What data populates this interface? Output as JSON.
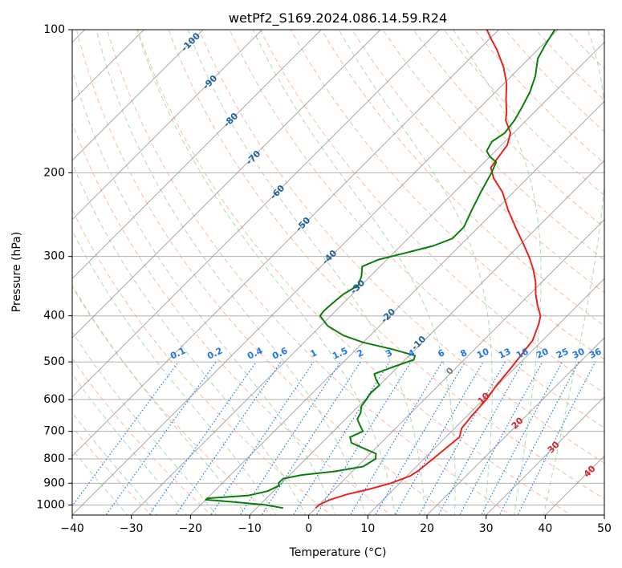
{
  "chart_data": {
    "type": "line",
    "title": "wetPf2_S169.2024.086.14.59.R24",
    "xlabel": "Temperature (°C)",
    "ylabel": "Pressure (hPa)",
    "xlim": [
      -40,
      50
    ],
    "ylim": [
      1050,
      100
    ],
    "y_scale": "log",
    "grid": true,
    "x_ticks": [
      "−40",
      "−30",
      "−20",
      "−10",
      "0",
      "10",
      "20",
      "30",
      "40",
      "50"
    ],
    "y_ticks": [
      {
        "p": 100,
        "label": "100"
      },
      {
        "p": 200,
        "label": "200"
      },
      {
        "p": 300,
        "label": "300"
      },
      {
        "p": 400,
        "label": "400"
      },
      {
        "p": 500,
        "label": "500"
      },
      {
        "p": 600,
        "label": "600"
      },
      {
        "p": 700,
        "label": "700"
      },
      {
        "p": 800,
        "label": "800"
      },
      {
        "p": 900,
        "label": "900"
      },
      {
        "p": 1000,
        "label": "1000"
      }
    ],
    "series": [
      {
        "color": "#e8231d",
        "points": [
          [
            1015,
            0.0
          ],
          [
            1000,
            0.0
          ],
          [
            975,
            1.0
          ],
          [
            950,
            3.0
          ],
          [
            925,
            6.0
          ],
          [
            900,
            8.5
          ],
          [
            870,
            10.5
          ],
          [
            850,
            11.0
          ],
          [
            800,
            11.5
          ],
          [
            750,
            12.0
          ],
          [
            720,
            12.3
          ],
          [
            690,
            11.2
          ],
          [
            650,
            10.8
          ],
          [
            600,
            10.5
          ],
          [
            560,
            9.8
          ],
          [
            520,
            9.4
          ],
          [
            480,
            8.8
          ],
          [
            450,
            8.3
          ],
          [
            430,
            7.3
          ],
          [
            415,
            6.5
          ],
          [
            400,
            5.5
          ],
          [
            380,
            3.2
          ],
          [
            360,
            1.0
          ],
          [
            340,
            -1.0
          ],
          [
            320,
            -3.5
          ],
          [
            300,
            -6.5
          ],
          [
            280,
            -10.0
          ],
          [
            260,
            -13.8
          ],
          [
            240,
            -17.8
          ],
          [
            220,
            -21.8
          ],
          [
            205,
            -25.8
          ],
          [
            195,
            -28.0
          ],
          [
            185,
            -28.5
          ],
          [
            175,
            -29.0
          ],
          [
            165,
            -30.5
          ],
          [
            155,
            -33.5
          ],
          [
            150,
            -34.5
          ],
          [
            140,
            -37.0
          ],
          [
            130,
            -39.5
          ],
          [
            120,
            -42.8
          ],
          [
            110,
            -47.0
          ],
          [
            105,
            -49.5
          ],
          [
            100,
            -52.0
          ]
        ]
      },
      {
        "color": "#0b7d0b",
        "points": [
          [
            1015,
            -5.5
          ],
          [
            1000,
            -9.0
          ],
          [
            985,
            -15.0
          ],
          [
            975,
            -20.0
          ],
          [
            968,
            -20.0
          ],
          [
            955,
            -13.5
          ],
          [
            935,
            -11.0
          ],
          [
            910,
            -10.0
          ],
          [
            900,
            -10.5
          ],
          [
            880,
            -10.5
          ],
          [
            865,
            -8.0
          ],
          [
            850,
            -3.0
          ],
          [
            830,
            1.0
          ],
          [
            800,
            1.8
          ],
          [
            780,
            1.0
          ],
          [
            760,
            -2.0
          ],
          [
            740,
            -5.0
          ],
          [
            720,
            -6.2
          ],
          [
            700,
            -5.0
          ],
          [
            680,
            -6.5
          ],
          [
            660,
            -8.0
          ],
          [
            640,
            -8.5
          ],
          [
            620,
            -9.5
          ],
          [
            600,
            -9.8
          ],
          [
            580,
            -10.2
          ],
          [
            560,
            -10.0
          ],
          [
            545,
            -11.5
          ],
          [
            530,
            -12.8
          ],
          [
            510,
            -10.5
          ],
          [
            495,
            -8.5
          ],
          [
            485,
            -9.0
          ],
          [
            470,
            -14.0
          ],
          [
            455,
            -20.0
          ],
          [
            440,
            -24.5
          ],
          [
            420,
            -28.8
          ],
          [
            400,
            -31.8
          ],
          [
            390,
            -32.0
          ],
          [
            375,
            -31.8
          ],
          [
            360,
            -31.5
          ],
          [
            345,
            -30.5
          ],
          [
            330,
            -31.5
          ],
          [
            315,
            -33.0
          ],
          [
            305,
            -31.5
          ],
          [
            295,
            -28.0
          ],
          [
            285,
            -24.5
          ],
          [
            275,
            -22.5
          ],
          [
            260,
            -22.5
          ],
          [
            240,
            -24.0
          ],
          [
            220,
            -25.5
          ],
          [
            200,
            -27.0
          ],
          [
            190,
            -28.0
          ],
          [
            185,
            -30.0
          ],
          [
            180,
            -31.5
          ],
          [
            172,
            -32.2
          ],
          [
            165,
            -31.5
          ],
          [
            155,
            -32.0
          ],
          [
            145,
            -33.0
          ],
          [
            135,
            -34.2
          ],
          [
            125,
            -36.0
          ],
          [
            115,
            -38.5
          ],
          [
            108,
            -39.5
          ],
          [
            100,
            -40.5
          ]
        ]
      }
    ],
    "isotherm_labels": [
      "-100",
      "-90",
      "-80",
      "-70",
      "-60",
      "-50",
      "-40",
      "-30",
      "-20",
      "-10",
      "0"
    ],
    "dry_adiabat_labels": [
      "10",
      "20",
      "30",
      "40"
    ],
    "mixing_ratio_labels": [
      "0.1",
      "0.2",
      "0.4",
      "0.6",
      "1",
      "1.5",
      "2",
      "3",
      "4",
      "6",
      "8",
      "10",
      "13",
      "16",
      "20",
      "25",
      "30",
      "36"
    ],
    "colors": {
      "isotherm": "#8c8c8c",
      "isotherm_label": "#1f5f9e",
      "dry_adiabat": "#f4a582",
      "dry_adiabat_label": "#d62728",
      "moist_adiabat": "#8fc98f",
      "mixing_ratio": "#1f77e4",
      "mixing_ratio_label": "#1f77e4",
      "grid": "#b0b0b0",
      "temperature": "#e8231d",
      "dewpoint": "#0b7d0b"
    }
  }
}
